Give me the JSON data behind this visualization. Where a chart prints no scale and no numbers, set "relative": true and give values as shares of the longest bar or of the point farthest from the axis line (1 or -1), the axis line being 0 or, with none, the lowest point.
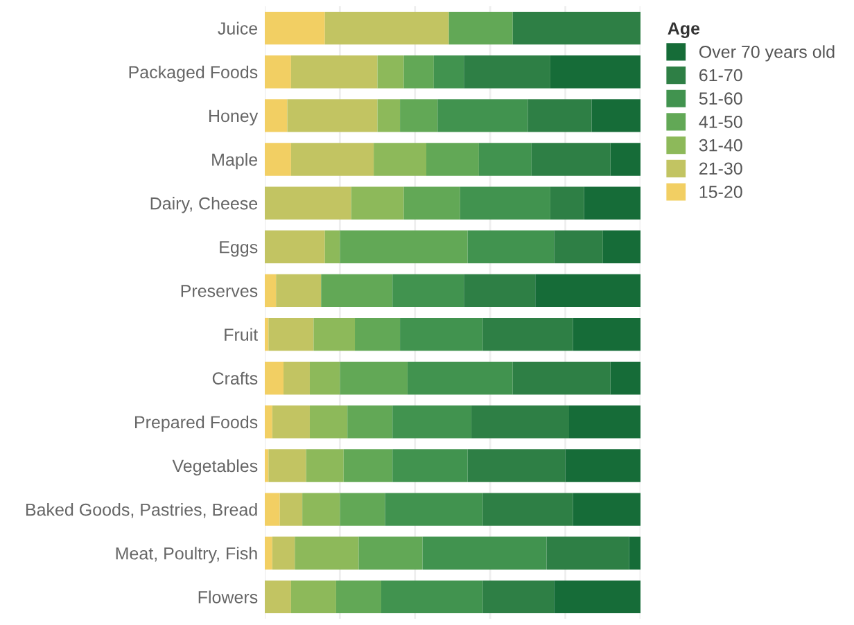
{
  "chart_data": {
    "type": "bar",
    "orientation": "horizontal",
    "stacked": true,
    "relative": true,
    "legend": "top right",
    "legend_title": "Age",
    "grid": "x",
    "categories": [
      "Juice",
      "Packaged Foods",
      "Honey",
      "Maple",
      "Dairy, Cheese",
      "Eggs",
      "Preserves",
      "Fruit",
      "Crafts",
      "Prepared Foods",
      "Vegetables",
      "Baked Goods, Pastries, Bread",
      "Meat, Poultry, Fish",
      "Flowers"
    ],
    "series": [
      {
        "name": "15-20",
        "color": "#f2cf63",
        "values": [
          0.16,
          0.07,
          0.06,
          0.07,
          0,
          0,
          0.03,
          0.01,
          0.05,
          0.02,
          0.01,
          0.04,
          0.02,
          0
        ]
      },
      {
        "name": "21-30",
        "color": "#c2c462",
        "values": [
          0.33,
          0.23,
          0.24,
          0.22,
          0.23,
          0.16,
          0.12,
          0.12,
          0.07,
          0.1,
          0.1,
          0.06,
          0.06,
          0.07
        ]
      },
      {
        "name": "31-40",
        "color": "#8db95a",
        "values": [
          0,
          0.07,
          0.06,
          0.14,
          0.14,
          0.04,
          0,
          0.11,
          0.08,
          0.1,
          0.1,
          0.1,
          0.17,
          0.12
        ]
      },
      {
        "name": "41-50",
        "color": "#62a856",
        "values": [
          0.17,
          0.08,
          0.1,
          0.14,
          0.15,
          0.34,
          0.19,
          0.12,
          0.18,
          0.12,
          0.13,
          0.12,
          0.17,
          0.12
        ]
      },
      {
        "name": "51-60",
        "color": "#41934f",
        "values": [
          0,
          0.08,
          0.24,
          0.14,
          0.24,
          0.23,
          0.19,
          0.22,
          0.28,
          0.21,
          0.2,
          0.26,
          0.33,
          0.27
        ]
      },
      {
        "name": "61-70",
        "color": "#2e7f45",
        "values": [
          0.34,
          0.23,
          0.17,
          0.21,
          0.09,
          0.13,
          0.19,
          0.24,
          0.26,
          0.26,
          0.26,
          0.24,
          0.22,
          0.19
        ]
      },
      {
        "name": "Over 70 years old",
        "color": "#166c38",
        "values": [
          0,
          0.24,
          0.13,
          0.08,
          0.15,
          0.1,
          0.28,
          0.18,
          0.08,
          0.19,
          0.2,
          0.18,
          0.03,
          0.23
        ]
      }
    ]
  }
}
